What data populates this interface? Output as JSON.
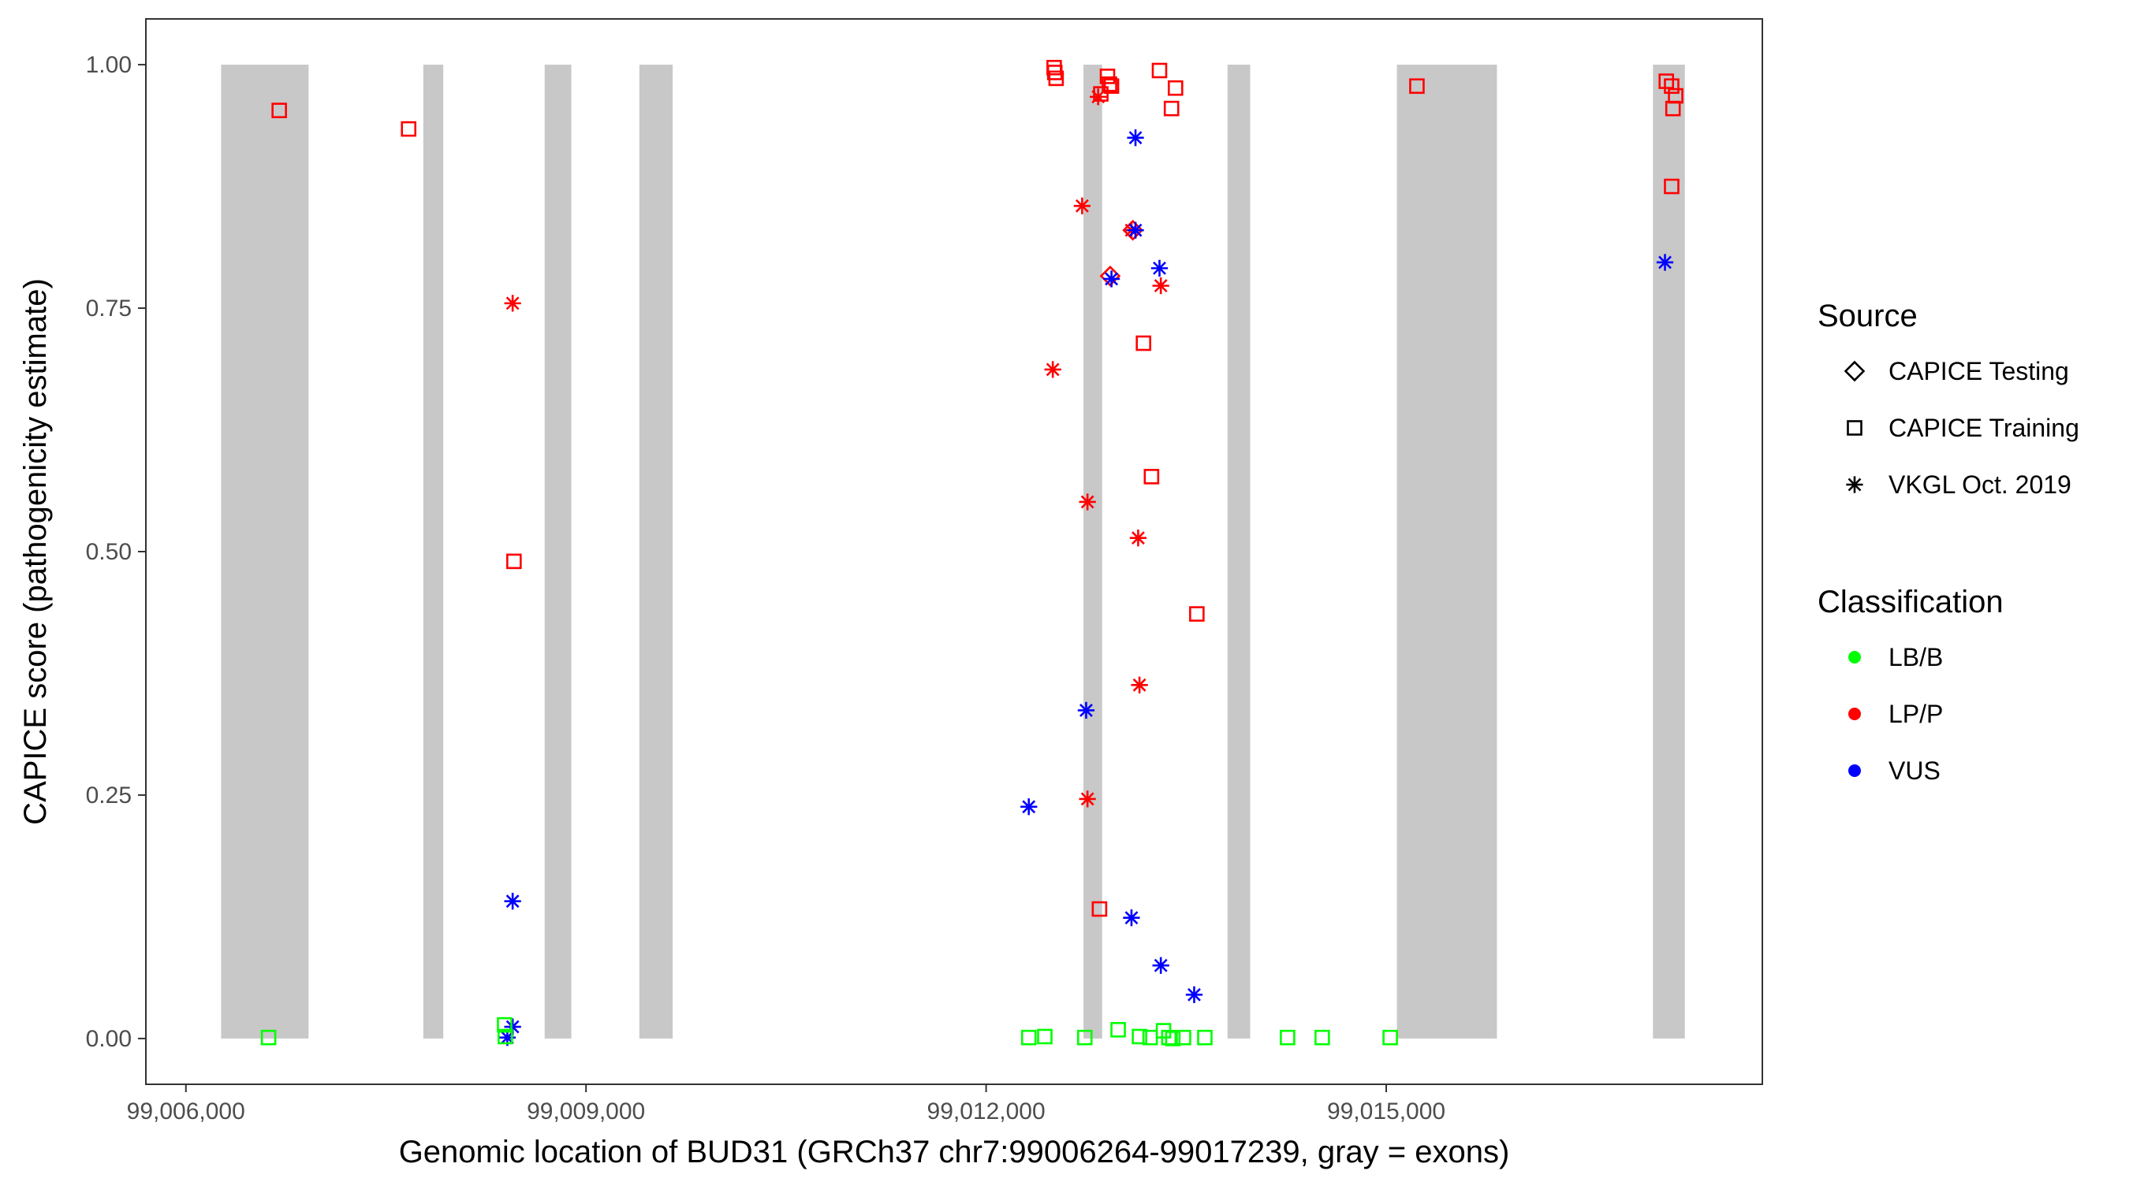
{
  "chart_data": {
    "type": "scatter",
    "title": "",
    "xlabel": "Genomic location of BUD31 (GRCh37 chr7:99006264-99017239, gray = exons)",
    "ylabel": "CAPICE score (pathogenicity estimate)",
    "xlim": [
      99005700,
      99017820
    ],
    "ylim": [
      -0.047,
      1.047
    ],
    "x_ticks": [
      99006000,
      99009000,
      99012000,
      99015000
    ],
    "x_tick_labels": [
      "99,006,000",
      "99,009,000",
      "99,012,000",
      "99,015,000"
    ],
    "y_ticks": [
      0,
      0.25,
      0.5,
      0.75,
      1
    ],
    "y_tick_labels": [
      "0.00",
      "0.25",
      "0.50",
      "0.75",
      "1.00"
    ],
    "grid": false,
    "exons_note": "gray = exons",
    "exons": [
      [
        99006264,
        99006920
      ],
      [
        99007780,
        99007930
      ],
      [
        99008690,
        99008890
      ],
      [
        99009400,
        99009650
      ],
      [
        99012730,
        99012870
      ],
      [
        99013810,
        99013980
      ],
      [
        99015080,
        99015830
      ],
      [
        99017000,
        99017239
      ]
    ],
    "legend": {
      "placement": "right",
      "source": {
        "title": "Source",
        "items": [
          {
            "label": "CAPICE Testing",
            "shape": "diamond"
          },
          {
            "label": "CAPICE Training",
            "shape": "square"
          },
          {
            "label": "VKGL Oct. 2019",
            "shape": "asterisk"
          }
        ]
      },
      "classification": {
        "title": "Classification",
        "items": [
          {
            "label": "LB/B",
            "color": "#00ff00"
          },
          {
            "label": "LP/P",
            "color": "#ff0000"
          },
          {
            "label": "VUS",
            "color": "#0000ff"
          }
        ]
      }
    },
    "colors": {
      "LB/B": "#00ff00",
      "LP/P": "#ff0000",
      "VUS": "#0000ff",
      "exon": "#c8c8c8"
    },
    "points": [
      {
        "x": 99006700,
        "y": 0.953,
        "source": "CAPICE Training",
        "class": "LP/P"
      },
      {
        "x": 99007670,
        "y": 0.934,
        "source": "CAPICE Training",
        "class": "LP/P"
      },
      {
        "x": 99008460,
        "y": 0.49,
        "source": "CAPICE Training",
        "class": "LP/P"
      },
      {
        "x": 99012510,
        "y": 0.997,
        "source": "CAPICE Training",
        "class": "LP/P"
      },
      {
        "x": 99012515,
        "y": 0.992,
        "source": "CAPICE Training",
        "class": "LP/P"
      },
      {
        "x": 99012525,
        "y": 0.986,
        "source": "CAPICE Training",
        "class": "LP/P"
      },
      {
        "x": 99012910,
        "y": 0.988,
        "source": "CAPICE Training",
        "class": "LP/P"
      },
      {
        "x": 99012925,
        "y": 0.98,
        "source": "CAPICE Training",
        "class": "LP/P"
      },
      {
        "x": 99012940,
        "y": 0.978,
        "source": "CAPICE Training",
        "class": "LP/P"
      },
      {
        "x": 99012860,
        "y": 0.97,
        "source": "CAPICE Training",
        "class": "LP/P"
      },
      {
        "x": 99013300,
        "y": 0.994,
        "source": "CAPICE Training",
        "class": "LP/P"
      },
      {
        "x": 99013420,
        "y": 0.976,
        "source": "CAPICE Training",
        "class": "LP/P"
      },
      {
        "x": 99013390,
        "y": 0.955,
        "source": "CAPICE Training",
        "class": "LP/P"
      },
      {
        "x": 99013180,
        "y": 0.714,
        "source": "CAPICE Training",
        "class": "LP/P"
      },
      {
        "x": 99013240,
        "y": 0.577,
        "source": "CAPICE Training",
        "class": "LP/P"
      },
      {
        "x": 99013580,
        "y": 0.436,
        "source": "CAPICE Training",
        "class": "LP/P"
      },
      {
        "x": 99012850,
        "y": 0.133,
        "source": "CAPICE Training",
        "class": "LP/P"
      },
      {
        "x": 99015230,
        "y": 0.978,
        "source": "CAPICE Training",
        "class": "LP/P"
      },
      {
        "x": 99017100,
        "y": 0.983,
        "source": "CAPICE Training",
        "class": "LP/P"
      },
      {
        "x": 99017140,
        "y": 0.978,
        "source": "CAPICE Training",
        "class": "LP/P"
      },
      {
        "x": 99017170,
        "y": 0.968,
        "source": "CAPICE Training",
        "class": "LP/P"
      },
      {
        "x": 99017150,
        "y": 0.955,
        "source": "CAPICE Training",
        "class": "LP/P"
      },
      {
        "x": 99017140,
        "y": 0.875,
        "source": "CAPICE Training",
        "class": "LP/P"
      },
      {
        "x": 99012930,
        "y": 0.783,
        "source": "CAPICE Testing",
        "class": "LP/P"
      },
      {
        "x": 99013100,
        "y": 0.83,
        "source": "CAPICE Testing",
        "class": "LP/P"
      },
      {
        "x": 99008450,
        "y": 0.755,
        "source": "VKGL Oct. 2019",
        "class": "LP/P"
      },
      {
        "x": 99012720,
        "y": 0.855,
        "source": "VKGL Oct. 2019",
        "class": "LP/P"
      },
      {
        "x": 99012840,
        "y": 0.967,
        "source": "VKGL Oct. 2019",
        "class": "LP/P"
      },
      {
        "x": 99013090,
        "y": 0.83,
        "source": "VKGL Oct. 2019",
        "class": "LP/P"
      },
      {
        "x": 99013310,
        "y": 0.773,
        "source": "VKGL Oct. 2019",
        "class": "LP/P"
      },
      {
        "x": 99012500,
        "y": 0.687,
        "source": "VKGL Oct. 2019",
        "class": "LP/P"
      },
      {
        "x": 99012760,
        "y": 0.551,
        "source": "VKGL Oct. 2019",
        "class": "LP/P"
      },
      {
        "x": 99013140,
        "y": 0.514,
        "source": "VKGL Oct. 2019",
        "class": "LP/P"
      },
      {
        "x": 99013150,
        "y": 0.363,
        "source": "VKGL Oct. 2019",
        "class": "LP/P"
      },
      {
        "x": 99012760,
        "y": 0.246,
        "source": "VKGL Oct. 2019",
        "class": "LP/P"
      },
      {
        "x": 99013120,
        "y": 0.925,
        "source": "VKGL Oct. 2019",
        "class": "VUS"
      },
      {
        "x": 99013120,
        "y": 0.83,
        "source": "VKGL Oct. 2019",
        "class": "VUS"
      },
      {
        "x": 99013300,
        "y": 0.791,
        "source": "VKGL Oct. 2019",
        "class": "VUS"
      },
      {
        "x": 99012940,
        "y": 0.78,
        "source": "VKGL Oct. 2019",
        "class": "VUS"
      },
      {
        "x": 99017090,
        "y": 0.797,
        "source": "VKGL Oct. 2019",
        "class": "VUS"
      },
      {
        "x": 99012750,
        "y": 0.337,
        "source": "VKGL Oct. 2019",
        "class": "VUS"
      },
      {
        "x": 99012320,
        "y": 0.238,
        "source": "VKGL Oct. 2019",
        "class": "VUS"
      },
      {
        "x": 99008450,
        "y": 0.141,
        "source": "VKGL Oct. 2019",
        "class": "VUS"
      },
      {
        "x": 99013090,
        "y": 0.124,
        "source": "VKGL Oct. 2019",
        "class": "VUS"
      },
      {
        "x": 99013310,
        "y": 0.075,
        "source": "VKGL Oct. 2019",
        "class": "VUS"
      },
      {
        "x": 99013560,
        "y": 0.045,
        "source": "VKGL Oct. 2019",
        "class": "VUS"
      },
      {
        "x": 99008450,
        "y": 0.012,
        "source": "VKGL Oct. 2019",
        "class": "VUS"
      },
      {
        "x": 99008410,
        "y": 0.001,
        "source": "VKGL Oct. 2019",
        "class": "VUS"
      },
      {
        "x": 99006620,
        "y": 0.001,
        "source": "CAPICE Training",
        "class": "LB/B"
      },
      {
        "x": 99008390,
        "y": 0.014,
        "source": "CAPICE Training",
        "class": "LB/B"
      },
      {
        "x": 99008395,
        "y": 0.002,
        "source": "CAPICE Training",
        "class": "LB/B"
      },
      {
        "x": 99012320,
        "y": 0.001,
        "source": "CAPICE Training",
        "class": "LB/B"
      },
      {
        "x": 99012440,
        "y": 0.002,
        "source": "CAPICE Training",
        "class": "LB/B"
      },
      {
        "x": 99012740,
        "y": 0.001,
        "source": "CAPICE Training",
        "class": "LB/B"
      },
      {
        "x": 99012990,
        "y": 0.009,
        "source": "CAPICE Training",
        "class": "LB/B"
      },
      {
        "x": 99013150,
        "y": 0.002,
        "source": "CAPICE Training",
        "class": "LB/B"
      },
      {
        "x": 99013230,
        "y": 0.001,
        "source": "CAPICE Training",
        "class": "LB/B"
      },
      {
        "x": 99013330,
        "y": 0.008,
        "source": "CAPICE Training",
        "class": "LB/B"
      },
      {
        "x": 99013370,
        "y": 0.001,
        "source": "CAPICE Training",
        "class": "LB/B"
      },
      {
        "x": 99013400,
        "y": 0.0,
        "source": "CAPICE Training",
        "class": "LB/B"
      },
      {
        "x": 99013480,
        "y": 0.001,
        "source": "CAPICE Training",
        "class": "LB/B"
      },
      {
        "x": 99013640,
        "y": 0.001,
        "source": "CAPICE Training",
        "class": "LB/B"
      },
      {
        "x": 99014260,
        "y": 0.001,
        "source": "CAPICE Training",
        "class": "LB/B"
      },
      {
        "x": 99014520,
        "y": 0.001,
        "source": "CAPICE Training",
        "class": "LB/B"
      },
      {
        "x": 99015030,
        "y": 0.001,
        "source": "CAPICE Training",
        "class": "LB/B"
      }
    ]
  }
}
